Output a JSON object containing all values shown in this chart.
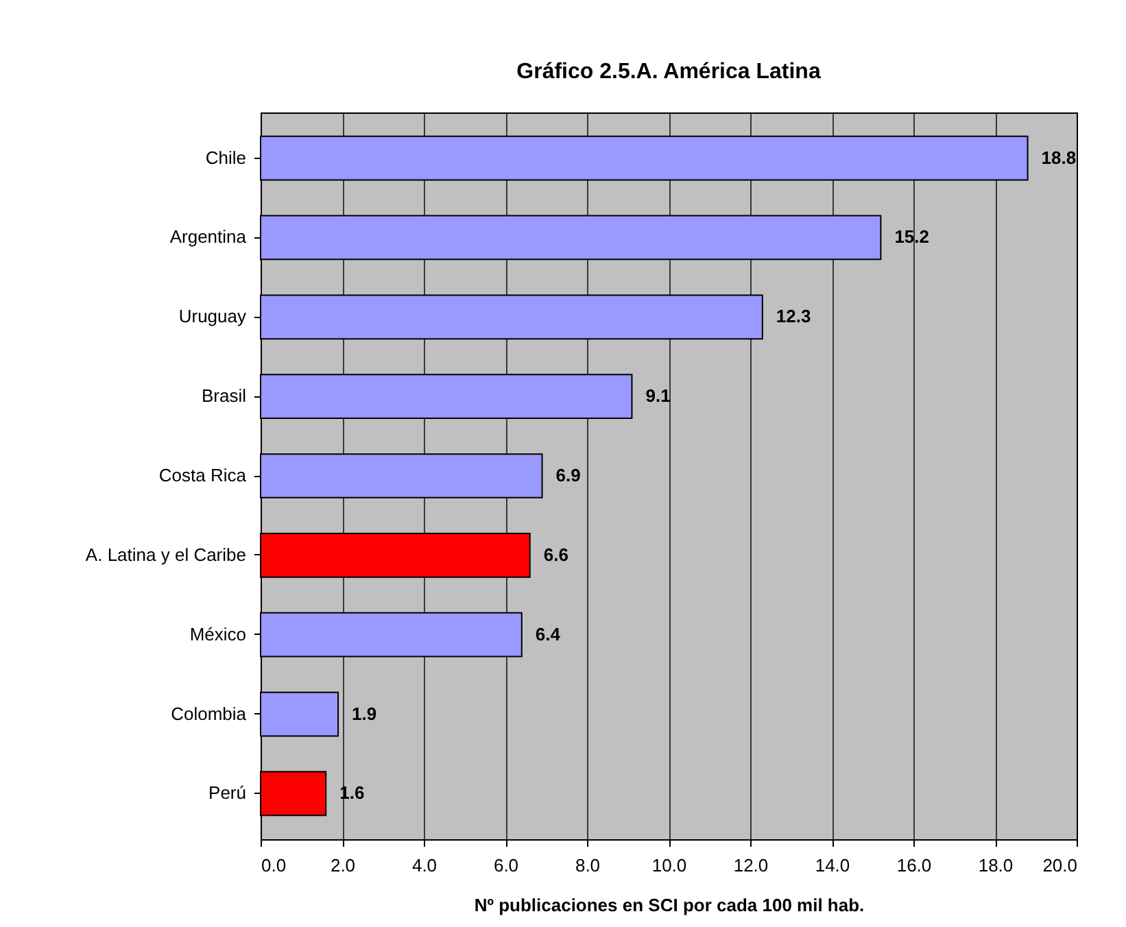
{
  "chart_data": {
    "type": "bar",
    "orientation": "horizontal",
    "title": "Gráfico 2.5.A. América Latina",
    "xlabel": "Nº publicaciones en SCI por cada 100 mil hab.",
    "categories": [
      "Chile",
      "Argentina",
      "Uruguay",
      "Brasil",
      "Costa Rica",
      "A. Latina y el Caribe",
      "México",
      "Colombia",
      "Perú"
    ],
    "values": [
      18.8,
      15.2,
      12.3,
      9.1,
      6.9,
      6.6,
      6.4,
      1.9,
      1.6
    ],
    "colors": [
      "#9999ff",
      "#9999ff",
      "#9999ff",
      "#9999ff",
      "#9999ff",
      "#ff0000",
      "#9999ff",
      "#9999ff",
      "#ff0000"
    ],
    "xlim": [
      0,
      20
    ],
    "xticks": [
      {
        "value": 0,
        "label": "0.0"
      },
      {
        "value": 2,
        "label": "2.0"
      },
      {
        "value": 4,
        "label": "4.0"
      },
      {
        "value": 6,
        "label": "6.0"
      },
      {
        "value": 8,
        "label": "8.0"
      },
      {
        "value": 10,
        "label": "10.0"
      },
      {
        "value": 12,
        "label": "12.0"
      },
      {
        "value": 14,
        "label": "14.0"
      },
      {
        "value": 16,
        "label": "16.0"
      },
      {
        "value": 18,
        "label": "18.0"
      },
      {
        "value": 20,
        "label": "20.0"
      }
    ],
    "grid": "x",
    "data_labels": true
  }
}
